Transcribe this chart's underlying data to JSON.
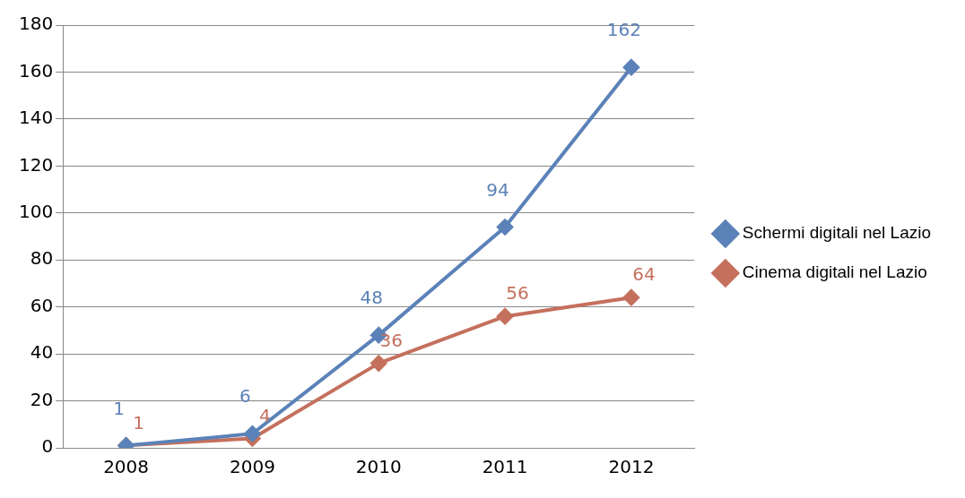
{
  "chart_data": {
    "type": "line",
    "categories": [
      "2008",
      "2009",
      "2010",
      "2011",
      "2012"
    ],
    "series": [
      {
        "name": "Schermi digitali nel Lazio",
        "color": "#5b82b8",
        "values": [
          1,
          6,
          48,
          94,
          162
        ]
      },
      {
        "name": "Cinema digitali nel Lazio",
        "color": "#c4705d",
        "values": [
          1,
          4,
          36,
          56,
          64
        ]
      }
    ],
    "ylim": [
      0,
      180
    ],
    "yticks": [
      0,
      20,
      40,
      60,
      80,
      100,
      120,
      140,
      160,
      180
    ],
    "grid": "y",
    "legend": "right",
    "marker": "diamond",
    "line_style": "solid",
    "data_labels": true
  }
}
